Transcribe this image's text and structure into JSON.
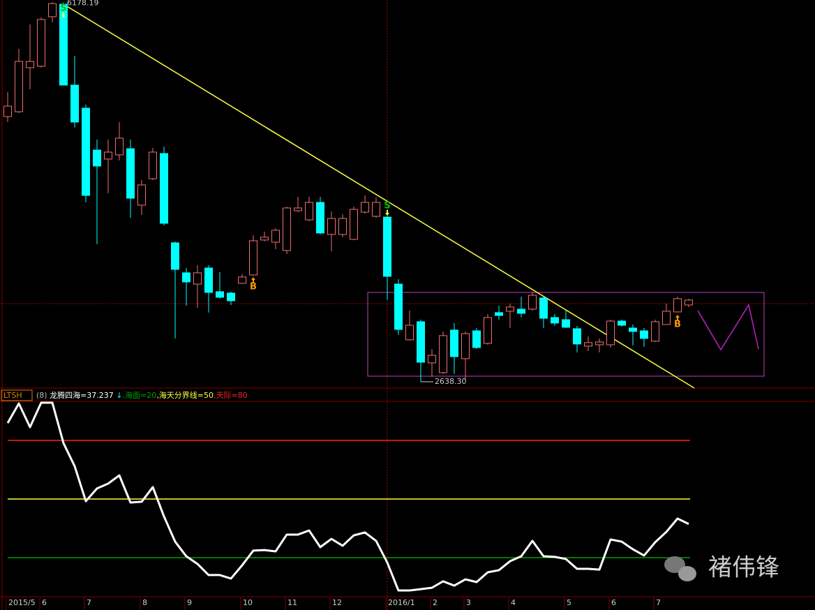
{
  "chart_data": [
    {
      "type": "candlestick",
      "categories": [
        "2015/5",
        null,
        null,
        "6",
        null,
        null,
        null,
        "7",
        null,
        null,
        null,
        null,
        "8",
        null,
        null,
        null,
        "9",
        null,
        null,
        null,
        null,
        "10",
        null,
        null,
        null,
        "11",
        null,
        null,
        null,
        "12",
        null,
        null,
        null,
        null,
        "2016/1",
        null,
        null,
        null,
        "2",
        null,
        null,
        "3",
        null,
        null,
        null,
        "4",
        null,
        null,
        null,
        null,
        "5",
        null,
        null,
        null,
        "6",
        null,
        null,
        null,
        "7",
        null,
        null,
        null
      ],
      "open": [
        5113,
        5158,
        5569,
        5582,
        6044,
        6161,
        5406,
        5191,
        4800,
        4716,
        4755,
        4813,
        4286,
        4533,
        4768,
        3935,
        3655,
        3550,
        3700,
        3479,
        3466,
        3557,
        3635,
        3961,
        3941,
        3863,
        4234,
        4149,
        4312,
        4013,
        4013,
        3967,
        4221,
        4182,
        4175,
        3550,
        3030,
        3199,
        2815,
        2724,
        3121,
        2854,
        3114,
        2997,
        3284,
        3297,
        3316,
        3316,
        3420,
        3238,
        3218,
        3134,
        2971,
        2984,
        2984,
        3205,
        3140,
        3114,
        3017,
        3173,
        3290,
        3355
      ],
      "high": [
        5341,
        5744,
        5972,
        6037,
        6180,
        6178.19,
        5679,
        5224,
        4898,
        4898,
        5061,
        4898,
        4520,
        4820,
        4833,
        3948,
        3700,
        3726,
        3726,
        3661,
        3479,
        3642,
        4006,
        4039,
        4071,
        4273,
        4364,
        4364,
        4364,
        4227,
        4201,
        4273,
        4377,
        4358,
        4247,
        3596,
        3303,
        3218,
        2945,
        3108,
        3186,
        3108,
        3140,
        3271,
        3349,
        3368,
        3433,
        3479,
        3433,
        3271,
        3303,
        3160,
        3062,
        3043,
        3218,
        3218,
        3173,
        3140,
        3218,
        3368,
        3433,
        3414
      ],
      "low": [
        5061,
        5145,
        5367,
        5569,
        5992,
        5406,
        5009,
        4312,
        3922,
        4397,
        4703,
        4169,
        4195,
        4520,
        4097,
        3043,
        3349,
        3329,
        3284,
        3414,
        3355,
        3550,
        3629,
        3948,
        3876,
        3830,
        4221,
        4136,
        4013,
        3856,
        3987,
        3961,
        4208,
        4169,
        3401,
        3075,
        3023,
        2638.3,
        2685,
        2711,
        2711,
        2652,
        2945,
        2984,
        3218,
        3140,
        3238,
        3303,
        3140,
        3160,
        3140,
        2912,
        2925,
        2912,
        2958,
        3153,
        2978,
        2965,
        3010,
        3173,
        3290,
        3336
      ],
      "close": [
        5210,
        5627,
        5627,
        6018,
        6167,
        5406,
        5061,
        4377,
        4651,
        4781,
        4911,
        4351,
        4475,
        4781,
        4117,
        3687,
        3570,
        3655,
        3472,
        3427,
        3394,
        3616,
        3954,
        3987,
        4052,
        4260,
        4260,
        4312,
        4026,
        4162,
        4162,
        4247,
        4312,
        4312,
        3622,
        3127,
        3166,
        2821,
        2886,
        3069,
        2873,
        3088,
        2958,
        3238,
        3257,
        3336,
        3277,
        3446,
        3231,
        3186,
        3147,
        2991,
        3004,
        3010,
        3205,
        3166,
        3108,
        3043,
        3199,
        3297,
        3414,
        3401
      ],
      "up_color": "#f07070",
      "down_color": "#00ffff",
      "ylim": [
        2580,
        6200
      ],
      "price_labels": [
        {
          "value": 6178.19,
          "label": "6178.19"
        },
        {
          "value": 2638.3,
          "label": "2638.30"
        }
      ],
      "signals": [
        "S",
        "S",
        "B",
        "B"
      ]
    },
    {
      "type": "line",
      "title": "LTSH",
      "subtitle": "(8)",
      "arrow": "↓",
      "series": [
        {
          "name": "龙腾四海=37.237",
          "color": "#ffffff",
          "values": [
            88.9,
            98.9,
            86.8,
            99.3,
            99.3,
            78.6,
            66.8,
            48.9,
            55.4,
            57.9,
            62.1,
            48.2,
            48.6,
            56.1,
            41.1,
            28.2,
            20.7,
            16.8,
            11.1,
            11.1,
            9.3,
            16.1,
            23.6,
            23.9,
            23.2,
            31.8,
            31.8,
            33.9,
            25.4,
            29.6,
            26.1,
            31.4,
            32.9,
            28.6,
            17.5,
            3.2,
            3.2,
            3.9,
            4.6,
            7.9,
            5.7,
            8.9,
            7.5,
            12.5,
            13.6,
            18.2,
            20.7,
            28.6,
            20.7,
            20.4,
            19.3,
            14.3,
            14.3,
            13.9,
            29.3,
            28.2,
            24.3,
            21.1,
            27.9,
            33.2,
            40,
            37.237
          ]
        }
      ],
      "levels": [
        {
          "value": 20,
          "label": ",海面=20",
          "color": "#00a000"
        },
        {
          "value": 50,
          "label": ",海天分界线=50",
          "color": "#ffff40"
        },
        {
          "value": 80,
          "label": ",天际=80",
          "color": "#ff2020"
        }
      ],
      "ylim": [
        0,
        100
      ]
    }
  ],
  "watermark": "褚伟锋"
}
